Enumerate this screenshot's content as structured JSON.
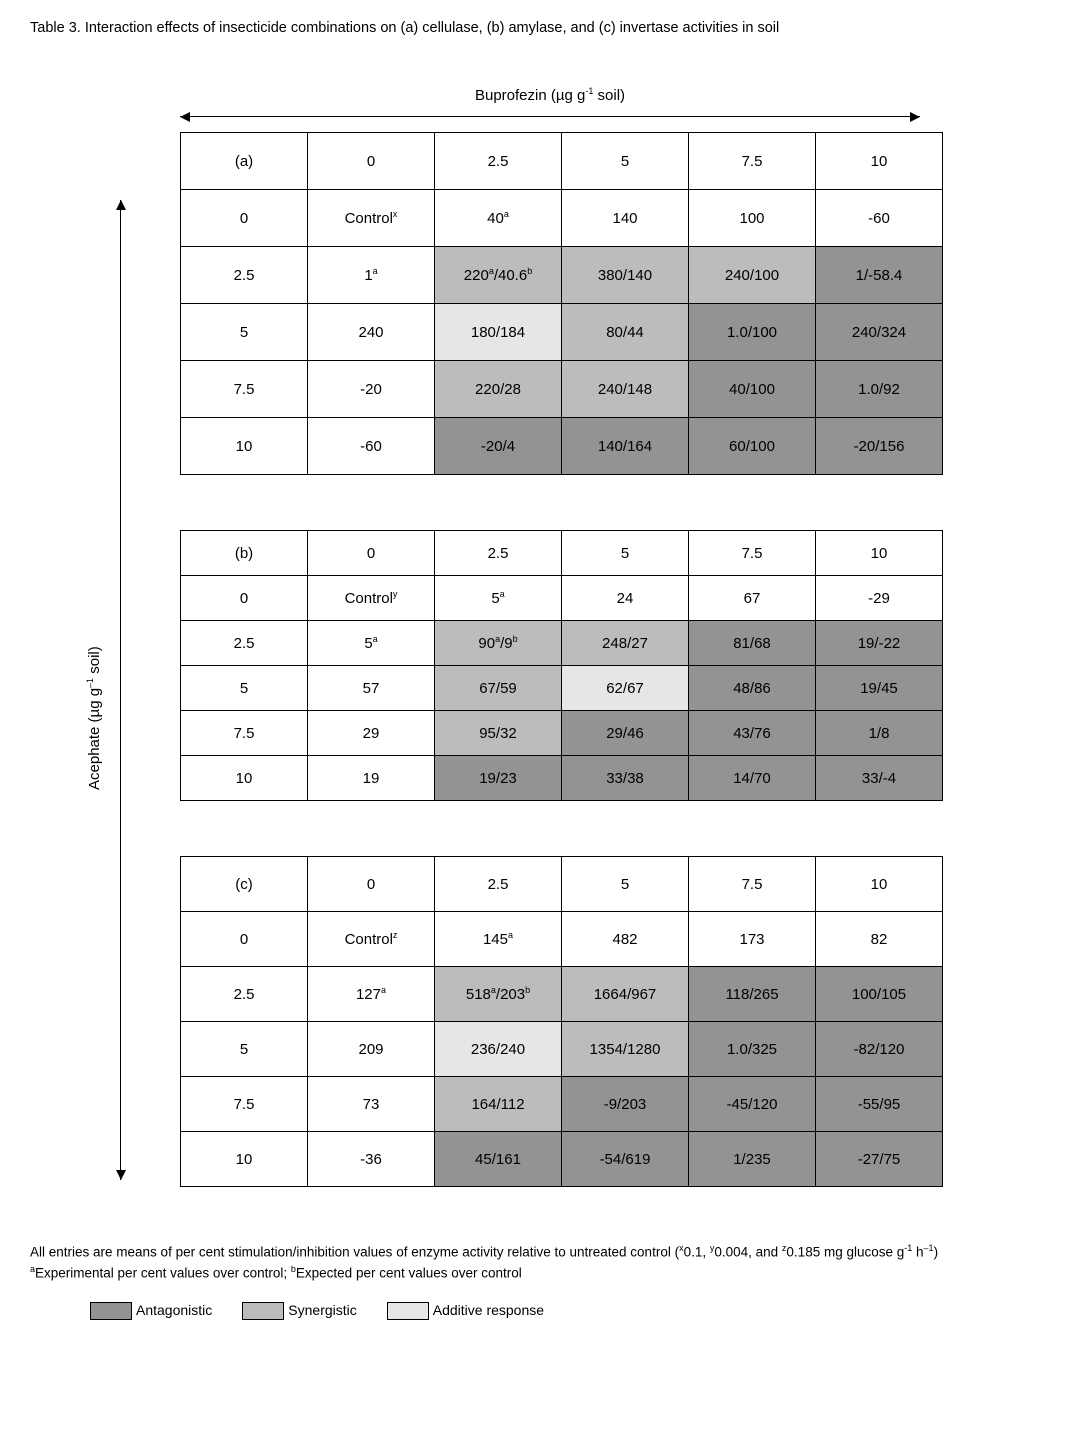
{
  "title": "Table 3.  Interaction effects of insecticide combinations on (a) cellulase, (b) amylase, and (c) invertase activities in soil",
  "x_axis_label": "Buprofezin (µg g<sup>-1</sup> soil)",
  "y_axis_label": "Acephate (µg g<sup>–1</sup> soil)",
  "column_headers": [
    "0",
    "2.5",
    "5",
    "7.5",
    "10"
  ],
  "row_headers": [
    "0",
    "2.5",
    "5",
    "7.5",
    "10"
  ],
  "panel_labels": {
    "a": "(a)",
    "b": "(b)",
    "c": "(c)"
  },
  "colors": {
    "antagonistic": "#939393",
    "synergistic": "#bcbcbc",
    "additive": "#e6e6e6",
    "none": "#ffffff"
  },
  "tables": {
    "a": {
      "cells": [
        [
          {
            "v": "Control<sup>x</sup>",
            "s": "none"
          },
          {
            "v": "40<sup>a</sup>",
            "s": "none"
          },
          {
            "v": "140",
            "s": "none"
          },
          {
            "v": "100",
            "s": "none"
          },
          {
            "v": "-60",
            "s": "none"
          }
        ],
        [
          {
            "v": "1<sup>a</sup>",
            "s": "none"
          },
          {
            "v": "220<sup>a</sup>/40.6<sup>b</sup>",
            "s": "synergistic"
          },
          {
            "v": "380/140",
            "s": "synergistic"
          },
          {
            "v": "240/100",
            "s": "synergistic"
          },
          {
            "v": "1/-58.4",
            "s": "antagonistic"
          }
        ],
        [
          {
            "v": "240",
            "s": "none"
          },
          {
            "v": "180/184",
            "s": "additive"
          },
          {
            "v": "80/44",
            "s": "synergistic"
          },
          {
            "v": "1.0/100",
            "s": "antagonistic"
          },
          {
            "v": "240/324",
            "s": "antagonistic"
          }
        ],
        [
          {
            "v": "-20",
            "s": "none"
          },
          {
            "v": "220/28",
            "s": "synergistic"
          },
          {
            "v": "240/148",
            "s": "synergistic"
          },
          {
            "v": "40/100",
            "s": "antagonistic"
          },
          {
            "v": "1.0/92",
            "s": "antagonistic"
          }
        ],
        [
          {
            "v": "-60",
            "s": "none"
          },
          {
            "v": "-20/4",
            "s": "antagonistic"
          },
          {
            "v": "140/164",
            "s": "antagonistic"
          },
          {
            "v": "60/100",
            "s": "antagonistic"
          },
          {
            "v": "-20/156",
            "s": "antagonistic"
          }
        ]
      ]
    },
    "b": {
      "cells": [
        [
          {
            "v": "Control<sup>y</sup>",
            "s": "none"
          },
          {
            "v": "5<sup>a</sup>",
            "s": "none"
          },
          {
            "v": "24",
            "s": "none"
          },
          {
            "v": "67",
            "s": "none"
          },
          {
            "v": "-29",
            "s": "none"
          }
        ],
        [
          {
            "v": "5<sup>a</sup>",
            "s": "none"
          },
          {
            "v": "90<sup>a</sup>/9<sup>b</sup>",
            "s": "synergistic"
          },
          {
            "v": "248/27",
            "s": "synergistic"
          },
          {
            "v": "81/68",
            "s": "antagonistic"
          },
          {
            "v": "19/-22",
            "s": "antagonistic"
          }
        ],
        [
          {
            "v": "57",
            "s": "none"
          },
          {
            "v": "67/59",
            "s": "synergistic"
          },
          {
            "v": "62/67",
            "s": "additive"
          },
          {
            "v": "48/86",
            "s": "antagonistic"
          },
          {
            "v": "19/45",
            "s": "antagonistic"
          }
        ],
        [
          {
            "v": "29",
            "s": "none"
          },
          {
            "v": "95/32",
            "s": "synergistic"
          },
          {
            "v": "29/46",
            "s": "antagonistic"
          },
          {
            "v": "43/76",
            "s": "antagonistic"
          },
          {
            "v": "1/8",
            "s": "antagonistic"
          }
        ],
        [
          {
            "v": "19",
            "s": "none"
          },
          {
            "v": "19/23",
            "s": "antagonistic"
          },
          {
            "v": "33/38",
            "s": "antagonistic"
          },
          {
            "v": "14/70",
            "s": "antagonistic"
          },
          {
            "v": "33/-4",
            "s": "antagonistic"
          }
        ]
      ]
    },
    "c": {
      "cells": [
        [
          {
            "v": "Control<sup>z</sup>",
            "s": "none"
          },
          {
            "v": "145<sup>a</sup>",
            "s": "none"
          },
          {
            "v": "482",
            "s": "none"
          },
          {
            "v": "173",
            "s": "none"
          },
          {
            "v": "82",
            "s": "none"
          }
        ],
        [
          {
            "v": "127<sup>a</sup>",
            "s": "none"
          },
          {
            "v": "518<sup>a</sup>/203<sup>b</sup>",
            "s": "synergistic"
          },
          {
            "v": "1664/967",
            "s": "synergistic"
          },
          {
            "v": "118/265",
            "s": "antagonistic"
          },
          {
            "v": "100/105",
            "s": "antagonistic"
          }
        ],
        [
          {
            "v": "209",
            "s": "none"
          },
          {
            "v": "236/240",
            "s": "additive"
          },
          {
            "v": "1354/1280",
            "s": "synergistic"
          },
          {
            "v": "1.0/325",
            "s": "antagonistic"
          },
          {
            "v": "-82/120",
            "s": "antagonistic"
          }
        ],
        [
          {
            "v": "73",
            "s": "none"
          },
          {
            "v": "164/112",
            "s": "synergistic"
          },
          {
            "v": "-9/203",
            "s": "antagonistic"
          },
          {
            "v": "-45/120",
            "s": "antagonistic"
          },
          {
            "v": "-55/95",
            "s": "antagonistic"
          }
        ],
        [
          {
            "v": "-36",
            "s": "none"
          },
          {
            "v": "45/161",
            "s": "antagonistic"
          },
          {
            "v": "-54/619",
            "s": "antagonistic"
          },
          {
            "v": "1/235",
            "s": "antagonistic"
          },
          {
            "v": "-27/75",
            "s": "antagonistic"
          }
        ]
      ]
    }
  },
  "footnotes": [
    "All entries are means of per cent stimulation/inhibition values of enzyme activity relative to untreated control (<sup>x</sup>0.1, <sup>y</sup>0.004, and <sup>z</sup>0.185 mg glucose g<sup>-1</sup> h<sup>–1</sup>)",
    "<sup>a</sup>Experimental per cent values over control;  <sup>b</sup>Expected per cent values over control"
  ],
  "legend": [
    {
      "label": "Antagonistic",
      "swatch": "antagonistic"
    },
    {
      "label": "Synergistic",
      "swatch": "synergistic"
    },
    {
      "label": "Additive response",
      "swatch": "additive"
    }
  ]
}
